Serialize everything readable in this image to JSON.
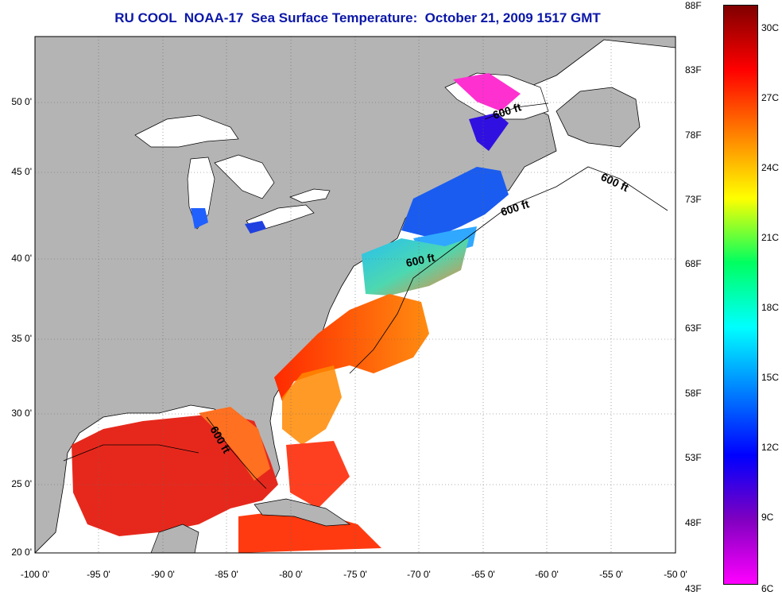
{
  "title": "RU COOL  NOAA-17  Sea Surface Temperature:  October 21, 2009 1517 GMT",
  "map": {
    "lon_ticks": [
      "-100 0'",
      "-95 0'",
      "-90 0'",
      "-85 0'",
      "-80 0'",
      "-75 0'",
      "-70 0'",
      "-65 0'",
      "-60 0'",
      "-55 0'",
      "-50 0'"
    ],
    "lat_ticks": [
      "50 0'",
      "45 0'",
      "40 0'",
      "35 0'",
      "30 0'",
      "25 0'",
      "20 0'"
    ],
    "isobath_labels": [
      "600 ft",
      "600 ft",
      "600 ft",
      "600 ft",
      "600 ft"
    ],
    "colors": {
      "land": "#b4b4b4",
      "no_data": "#ffffff",
      "coast": "#000000"
    }
  },
  "colorbar": {
    "fahrenheit_labels": [
      "88F",
      "83F",
      "78F",
      "73F",
      "68F",
      "63F",
      "58F",
      "53F",
      "48F",
      "43F"
    ],
    "celsius_labels": [
      "30C",
      "27C",
      "24C",
      "21C",
      "18C",
      "15C",
      "12C",
      "9C",
      "6C"
    ],
    "colors": [
      "#800000",
      "#ff0000",
      "#ff8000",
      "#ffff00",
      "#00ff60",
      "#00ffff",
      "#0080ff",
      "#0000ff",
      "#8000c0",
      "#ff00ff"
    ]
  }
}
